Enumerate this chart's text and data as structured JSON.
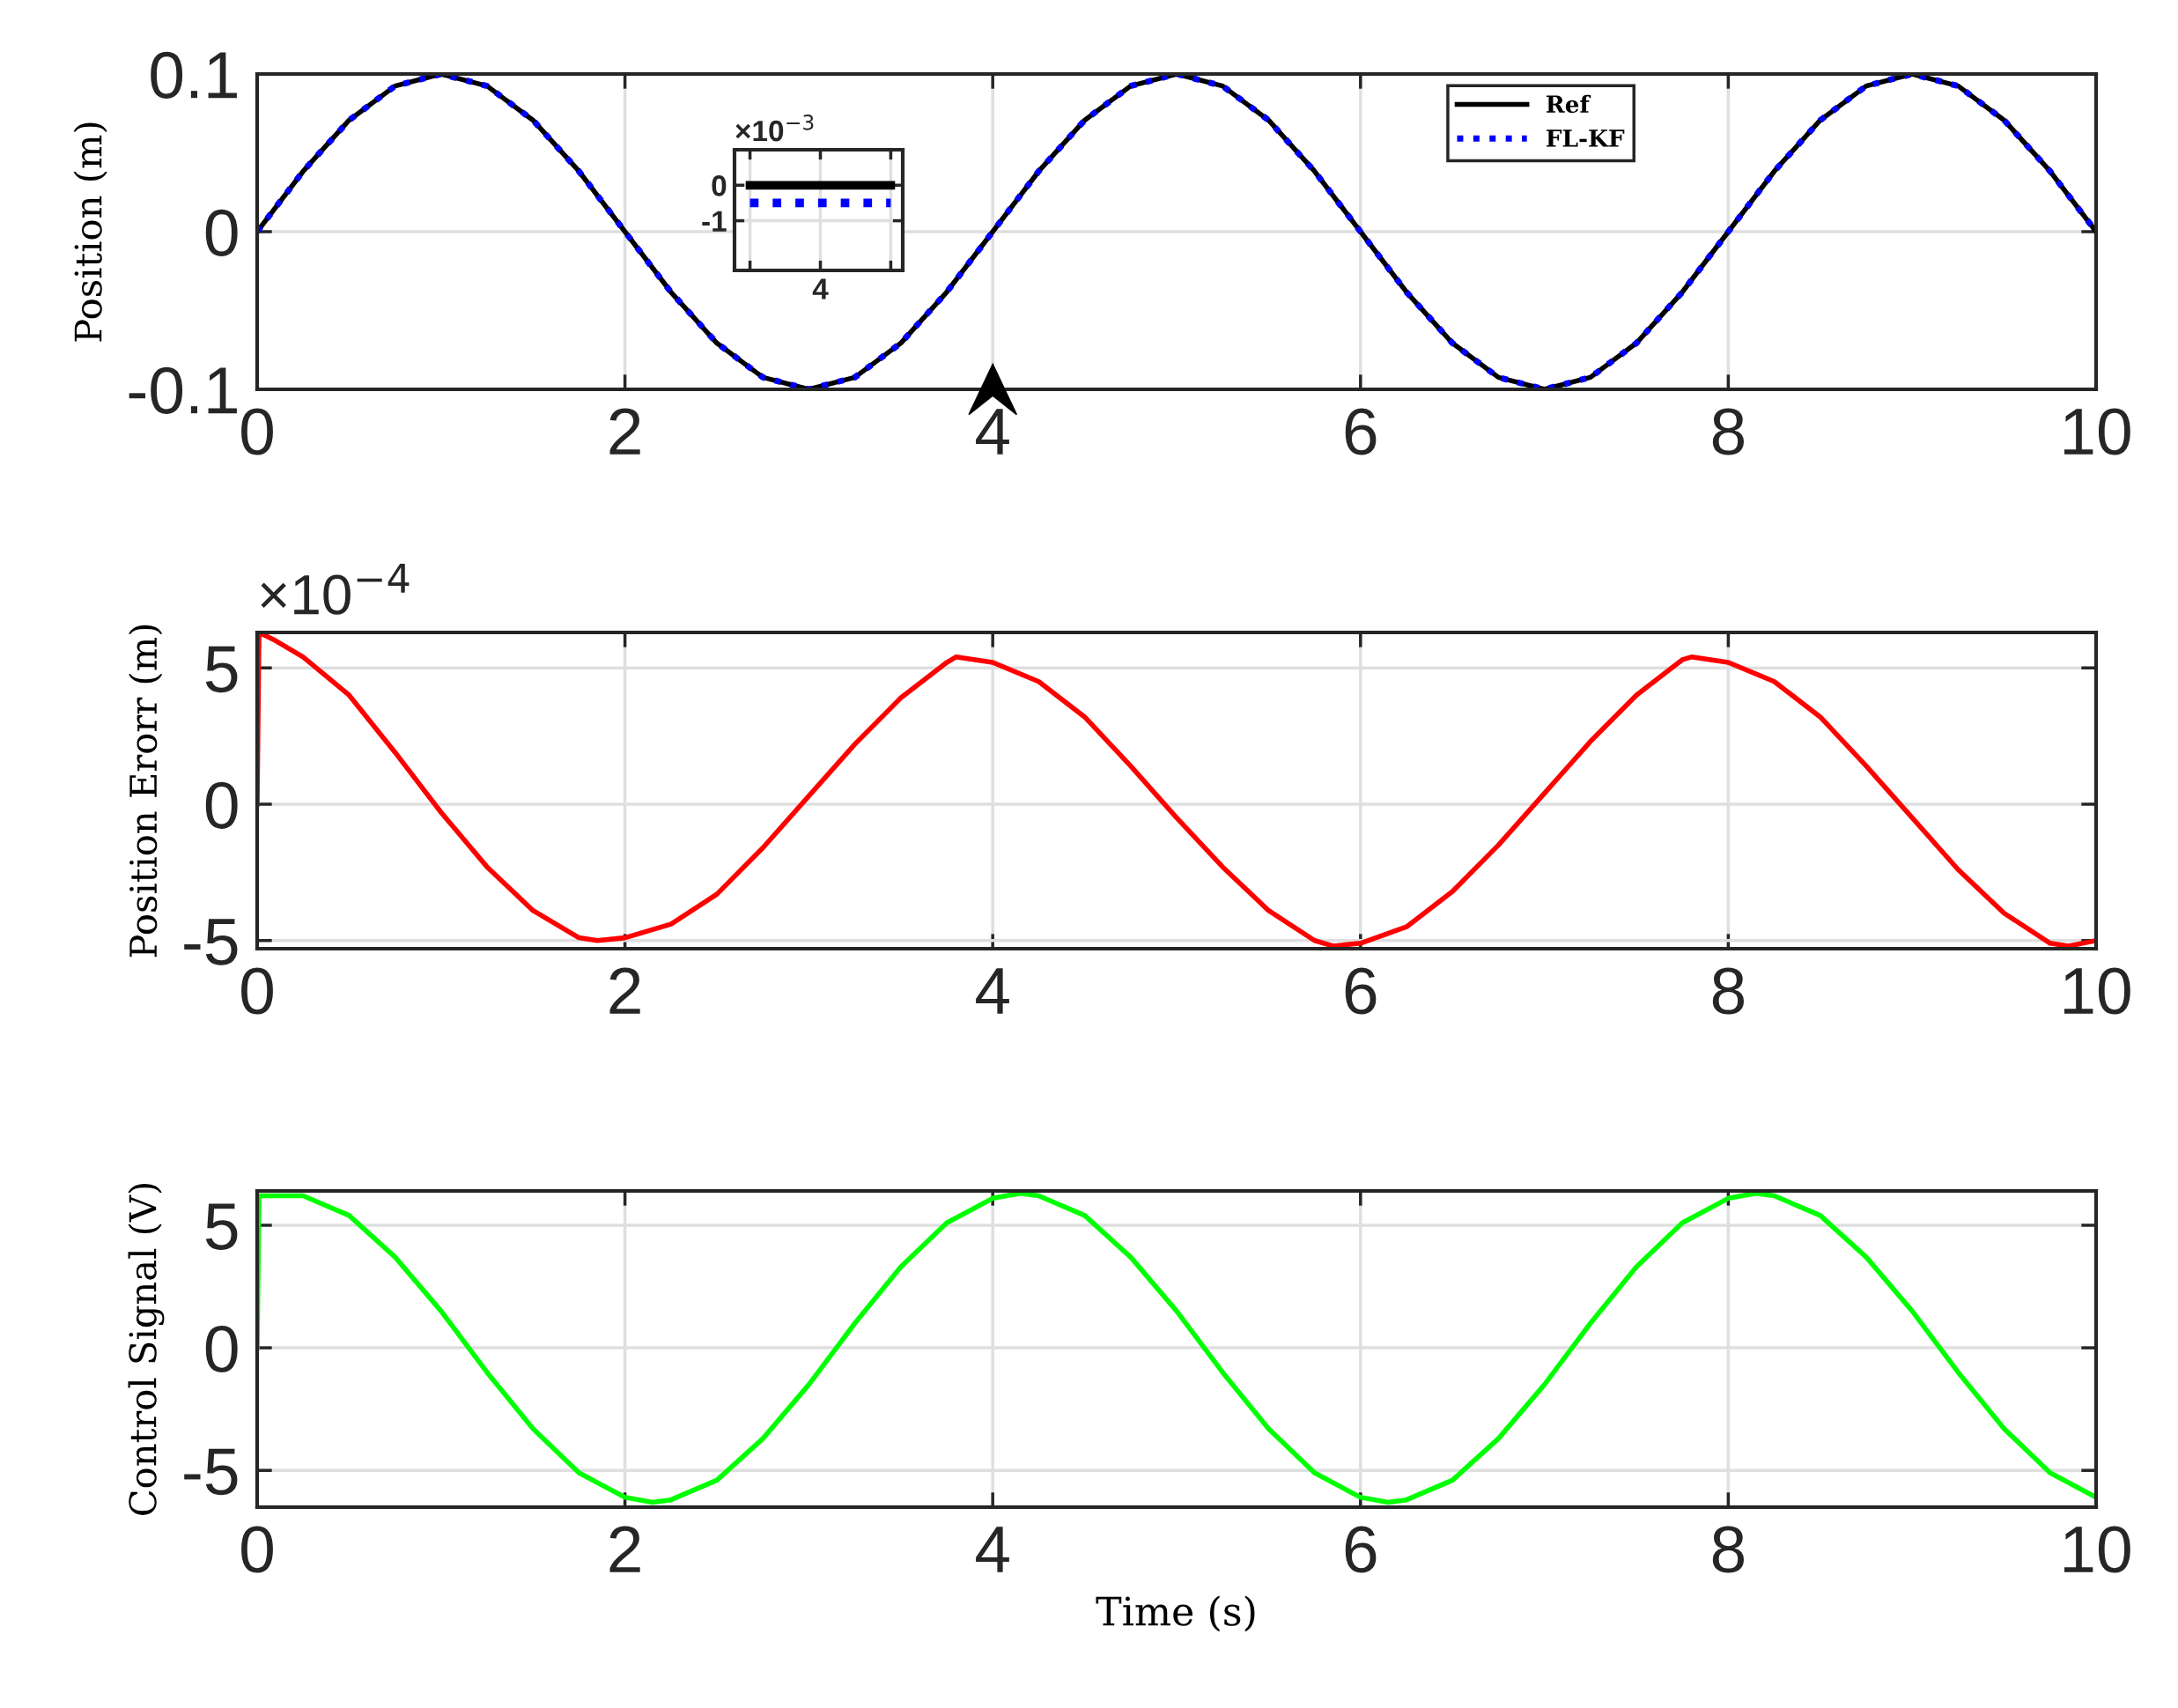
{
  "chart_data": [
    {
      "type": "line",
      "ylabel": "Position (m)",
      "x": [
        0,
        0.25,
        0.5,
        0.75,
        1,
        1.25,
        1.5,
        1.75,
        2,
        2.25,
        2.5,
        2.75,
        3,
        3.25,
        3.5,
        3.75,
        4,
        4.25,
        4.5,
        4.75,
        5,
        5.25,
        5.5,
        5.75,
        6,
        6.25,
        6.5,
        6.75,
        7,
        7.25,
        7.5,
        7.75,
        8,
        8.25,
        8.5,
        8.75,
        9,
        9.25,
        9.5,
        9.75,
        10
      ],
      "series": [
        {
          "name": "Ref",
          "color": "#000000",
          "line_style": "solid",
          "values": [
            0,
            0.0383,
            0.0707,
            0.0924,
            0.1,
            0.0924,
            0.0707,
            0.0383,
            0,
            -0.0383,
            -0.0707,
            -0.0924,
            -0.1,
            -0.0924,
            -0.0707,
            -0.0383,
            0,
            0.0383,
            0.0707,
            0.0924,
            0.1,
            0.0924,
            0.0707,
            0.0383,
            0,
            -0.0383,
            -0.0707,
            -0.0924,
            -0.1,
            -0.0924,
            -0.0707,
            -0.0383,
            0,
            0.0383,
            0.0707,
            0.0924,
            0.1,
            0.0924,
            0.0707,
            0.0383,
            0
          ]
        },
        {
          "name": "FL-KF",
          "color": "#0000ff",
          "line_style": "dotted",
          "values": [
            0,
            0.0383,
            0.0707,
            0.0924,
            0.1,
            0.0924,
            0.0707,
            0.0383,
            0,
            -0.0383,
            -0.0707,
            -0.0924,
            -0.1,
            -0.0924,
            -0.0707,
            -0.0383,
            0,
            0.0383,
            0.0707,
            0.0924,
            0.1,
            0.0924,
            0.0707,
            0.0383,
            0,
            -0.0383,
            -0.0707,
            -0.0924,
            -0.1,
            -0.0924,
            -0.0707,
            -0.0383,
            0,
            0.0383,
            0.0707,
            0.0924,
            0.1,
            0.0924,
            0.0707,
            0.0383,
            0
          ]
        }
      ],
      "xlim": [
        0,
        10
      ],
      "xticks": [
        0,
        2,
        4,
        6,
        8,
        10
      ],
      "ylim": [
        -0.1,
        0.1
      ],
      "yticks": [
        -0.1,
        0,
        0.1
      ],
      "grid": true,
      "legend": "top right"
    },
    {
      "type": "line",
      "ylabel": "Position Erorr (m)",
      "annotations": [
        "×10$^{−4}$"
      ],
      "x": [
        0,
        0.01,
        0.1,
        0.25,
        0.5,
        0.75,
        1,
        1.25,
        1.5,
        1.75,
        1.85,
        2,
        2.25,
        2.5,
        2.75,
        3,
        3.25,
        3.5,
        3.75,
        3.8,
        4,
        4.25,
        4.5,
        4.75,
        5,
        5.25,
        5.5,
        5.75,
        5.85,
        6,
        6.25,
        6.5,
        6.75,
        7,
        7.25,
        7.5,
        7.75,
        7.8,
        8,
        8.25,
        8.5,
        8.75,
        9,
        9.25,
        9.5,
        9.75,
        9.85,
        10
      ],
      "series": [
        {
          "color": "#ff0000",
          "line_style": "solid",
          "values": [
            0,
            6.3,
            6.0,
            5.4,
            4.0,
            1.9,
            -0.3,
            -2.3,
            -3.9,
            -4.9,
            -5.0,
            -4.9,
            -4.4,
            -3.3,
            -1.6,
            0.3,
            2.2,
            3.9,
            5.2,
            5.4,
            5.2,
            4.5,
            3.2,
            1.4,
            -0.5,
            -2.3,
            -3.9,
            -5.0,
            -5.2,
            -5.1,
            -4.5,
            -3.2,
            -1.5,
            0.4,
            2.3,
            4.0,
            5.3,
            5.4,
            5.2,
            4.5,
            3.2,
            1.4,
            -0.5,
            -2.4,
            -4.0,
            -5.1,
            -5.2,
            -5.0
          ]
        }
      ],
      "xlim": [
        0,
        10
      ],
      "xticks": [
        0,
        2,
        4,
        6,
        8,
        10
      ],
      "ylim": [
        -5.3,
        6.3
      ],
      "yticks": [
        -5,
        0,
        5
      ],
      "grid": true
    },
    {
      "type": "line",
      "ylabel": "Control Signal (V)",
      "xlabel": "Time (s)",
      "x": [
        0,
        0.01,
        0.25,
        0.5,
        0.75,
        1,
        1.25,
        1.5,
        1.75,
        2,
        2.15,
        2.25,
        2.5,
        2.75,
        3,
        3.25,
        3.5,
        3.75,
        4,
        4.15,
        4.25,
        4.5,
        4.75,
        5,
        5.25,
        5.5,
        5.75,
        6,
        6.15,
        6.25,
        6.5,
        6.75,
        7,
        7.25,
        7.5,
        7.75,
        8,
        8.15,
        8.25,
        8.5,
        8.75,
        9,
        9.25,
        9.5,
        9.75,
        10
      ],
      "series": [
        {
          "color": "#00ff00",
          "line_style": "solid",
          "values": [
            0,
            6.2,
            6.2,
            5.4,
            3.7,
            1.5,
            -1.0,
            -3.3,
            -5.1,
            -6.1,
            -6.3,
            -6.2,
            -5.4,
            -3.7,
            -1.5,
            1.0,
            3.3,
            5.1,
            6.1,
            6.3,
            6.2,
            5.4,
            3.7,
            1.5,
            -1.0,
            -3.3,
            -5.1,
            -6.1,
            -6.3,
            -6.2,
            -5.4,
            -3.7,
            -1.5,
            1.0,
            3.3,
            5.1,
            6.1,
            6.3,
            6.2,
            5.4,
            3.7,
            1.5,
            -1.0,
            -3.3,
            -5.1,
            -6.1
          ]
        }
      ],
      "xlim": [
        0,
        10
      ],
      "xticks": [
        0,
        2,
        4,
        6,
        8,
        10
      ],
      "ylim": [
        -6.5,
        6.4
      ],
      "yticks": [
        -5,
        0,
        5
      ],
      "grid": true
    },
    {
      "type": "line",
      "annotations": [
        "×10$^{−3}$"
      ],
      "categories": [
        null,
        "4",
        null
      ],
      "series": [
        {
          "color": "#000000",
          "line_style": "solid",
          "values": [
            0,
            0,
            0
          ]
        },
        {
          "color": "#0000ff",
          "line_style": "dotted",
          "values": [
            -0.5,
            -0.5,
            -0.5
          ]
        }
      ],
      "ylim": [
        -2.4,
        1.0
      ],
      "yticks": [
        -1,
        0
      ],
      "grid": true
    }
  ]
}
